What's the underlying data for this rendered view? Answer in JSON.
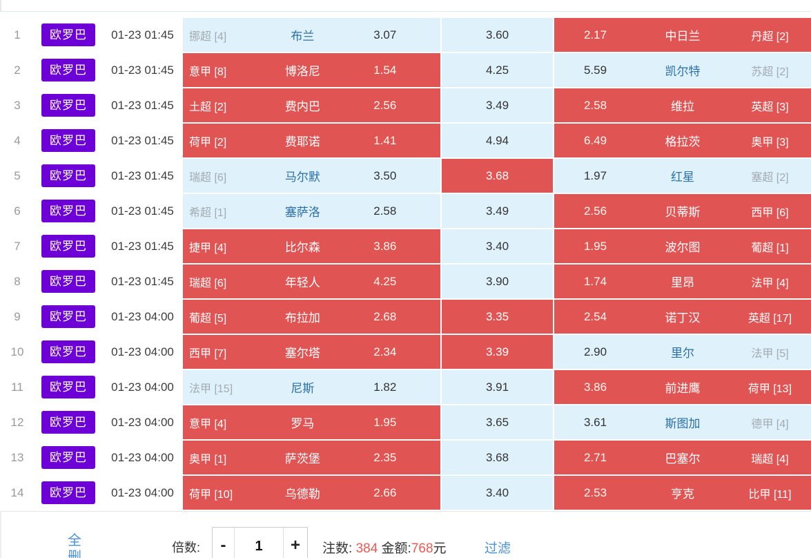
{
  "colors": {
    "selected_red": "#e15454",
    "unselected_blue": "#dff1fb",
    "badge_purple": "#6c00d6",
    "link_blue": "#4a90da",
    "count_red": "#ee5a52"
  },
  "table": {
    "rows": [
      {
        "num": "1",
        "badge": "欧罗巴",
        "time": "01-23 01:45",
        "host": {
          "league": "挪超 [4]",
          "team": "布兰",
          "odds": "3.07",
          "bg": "blue"
        },
        "draw": {
          "odds": "3.60",
          "bg": "blue"
        },
        "away": {
          "odds": "2.17",
          "team": "中日兰",
          "league": "丹超 [2]",
          "bg": "red"
        }
      },
      {
        "num": "2",
        "badge": "欧罗巴",
        "time": "01-23 01:45",
        "host": {
          "league": "意甲 [8]",
          "team": "博洛尼",
          "odds": "1.54",
          "bg": "red"
        },
        "draw": {
          "odds": "4.25",
          "bg": "blue"
        },
        "away": {
          "odds": "5.59",
          "team": "凯尔特",
          "league": "苏超 [2]",
          "bg": "blue"
        }
      },
      {
        "num": "3",
        "badge": "欧罗巴",
        "time": "01-23 01:45",
        "host": {
          "league": "土超 [2]",
          "team": "费内巴",
          "odds": "2.56",
          "bg": "red"
        },
        "draw": {
          "odds": "3.49",
          "bg": "blue"
        },
        "away": {
          "odds": "2.58",
          "team": "维拉",
          "league": "英超 [3]",
          "bg": "red"
        }
      },
      {
        "num": "4",
        "badge": "欧罗巴",
        "time": "01-23 01:45",
        "host": {
          "league": "荷甲 [2]",
          "team": "费耶诺",
          "odds": "1.41",
          "bg": "red"
        },
        "draw": {
          "odds": "4.94",
          "bg": "blue"
        },
        "away": {
          "odds": "6.49",
          "team": "格拉茨",
          "league": "奥甲 [3]",
          "bg": "red"
        }
      },
      {
        "num": "5",
        "badge": "欧罗巴",
        "time": "01-23 01:45",
        "host": {
          "league": "瑞超 [6]",
          "team": "马尔默",
          "odds": "3.50",
          "bg": "blue"
        },
        "draw": {
          "odds": "3.68",
          "bg": "red"
        },
        "away": {
          "odds": "1.97",
          "team": "红星",
          "league": "塞超 [2]",
          "bg": "blue"
        }
      },
      {
        "num": "6",
        "badge": "欧罗巴",
        "time": "01-23 01:45",
        "host": {
          "league": "希超 [1]",
          "team": "塞萨洛",
          "odds": "2.58",
          "bg": "blue"
        },
        "draw": {
          "odds": "3.49",
          "bg": "blue"
        },
        "away": {
          "odds": "2.56",
          "team": "贝蒂斯",
          "league": "西甲 [6]",
          "bg": "red"
        }
      },
      {
        "num": "7",
        "badge": "欧罗巴",
        "time": "01-23 01:45",
        "host": {
          "league": "捷甲 [4]",
          "team": "比尔森",
          "odds": "3.86",
          "bg": "red"
        },
        "draw": {
          "odds": "3.40",
          "bg": "blue"
        },
        "away": {
          "odds": "1.95",
          "team": "波尔图",
          "league": "葡超 [1]",
          "bg": "red"
        }
      },
      {
        "num": "8",
        "badge": "欧罗巴",
        "time": "01-23 01:45",
        "host": {
          "league": "瑞超 [6]",
          "team": "年轻人",
          "odds": "4.25",
          "bg": "red"
        },
        "draw": {
          "odds": "3.90",
          "bg": "blue"
        },
        "away": {
          "odds": "1.74",
          "team": "里昂",
          "league": "法甲 [4]",
          "bg": "red"
        }
      },
      {
        "num": "9",
        "badge": "欧罗巴",
        "time": "01-23 04:00",
        "host": {
          "league": "葡超 [5]",
          "team": "布拉加",
          "odds": "2.68",
          "bg": "red"
        },
        "draw": {
          "odds": "3.35",
          "bg": "red"
        },
        "away": {
          "odds": "2.54",
          "team": "诺丁汉",
          "league": "英超 [17]",
          "bg": "red"
        }
      },
      {
        "num": "10",
        "badge": "欧罗巴",
        "time": "01-23 04:00",
        "host": {
          "league": "西甲 [7]",
          "team": "塞尔塔",
          "odds": "2.34",
          "bg": "red"
        },
        "draw": {
          "odds": "3.39",
          "bg": "red"
        },
        "away": {
          "odds": "2.90",
          "team": "里尔",
          "league": "法甲 [5]",
          "bg": "blue"
        }
      },
      {
        "num": "11",
        "badge": "欧罗巴",
        "time": "01-23 04:00",
        "host": {
          "league": "法甲 [15]",
          "team": "尼斯",
          "odds": "1.82",
          "bg": "blue"
        },
        "draw": {
          "odds": "3.91",
          "bg": "blue"
        },
        "away": {
          "odds": "3.86",
          "team": "前进鹰",
          "league": "荷甲 [13]",
          "bg": "red"
        }
      },
      {
        "num": "12",
        "badge": "欧罗巴",
        "time": "01-23 04:00",
        "host": {
          "league": "意甲 [4]",
          "team": "罗马",
          "odds": "1.95",
          "bg": "red"
        },
        "draw": {
          "odds": "3.65",
          "bg": "blue"
        },
        "away": {
          "odds": "3.61",
          "team": "斯图加",
          "league": "德甲 [4]",
          "bg": "blue"
        }
      },
      {
        "num": "13",
        "badge": "欧罗巴",
        "time": "01-23 04:00",
        "host": {
          "league": "奥甲 [1]",
          "team": "萨茨堡",
          "odds": "2.35",
          "bg": "red"
        },
        "draw": {
          "odds": "3.68",
          "bg": "blue"
        },
        "away": {
          "odds": "2.71",
          "team": "巴塞尔",
          "league": "瑞超 [4]",
          "bg": "red"
        }
      },
      {
        "num": "14",
        "badge": "欧罗巴",
        "time": "01-23 04:00",
        "host": {
          "league": "荷甲 [10]",
          "team": "乌德勒",
          "odds": "2.66",
          "bg": "red"
        },
        "draw": {
          "odds": "3.40",
          "bg": "blue"
        },
        "away": {
          "odds": "2.53",
          "team": "亨克",
          "league": "比甲 [11]",
          "bg": "red"
        }
      }
    ]
  },
  "footer": {
    "delete_all": "全删",
    "multiplier_label": "倍数:",
    "minus": "-",
    "multiplier_value": "1",
    "plus": "+",
    "bets_label": "注数:",
    "bets_count": "384",
    "amount_label": "金额:",
    "amount_value": "768",
    "amount_unit": "元",
    "filter": "过滤"
  }
}
